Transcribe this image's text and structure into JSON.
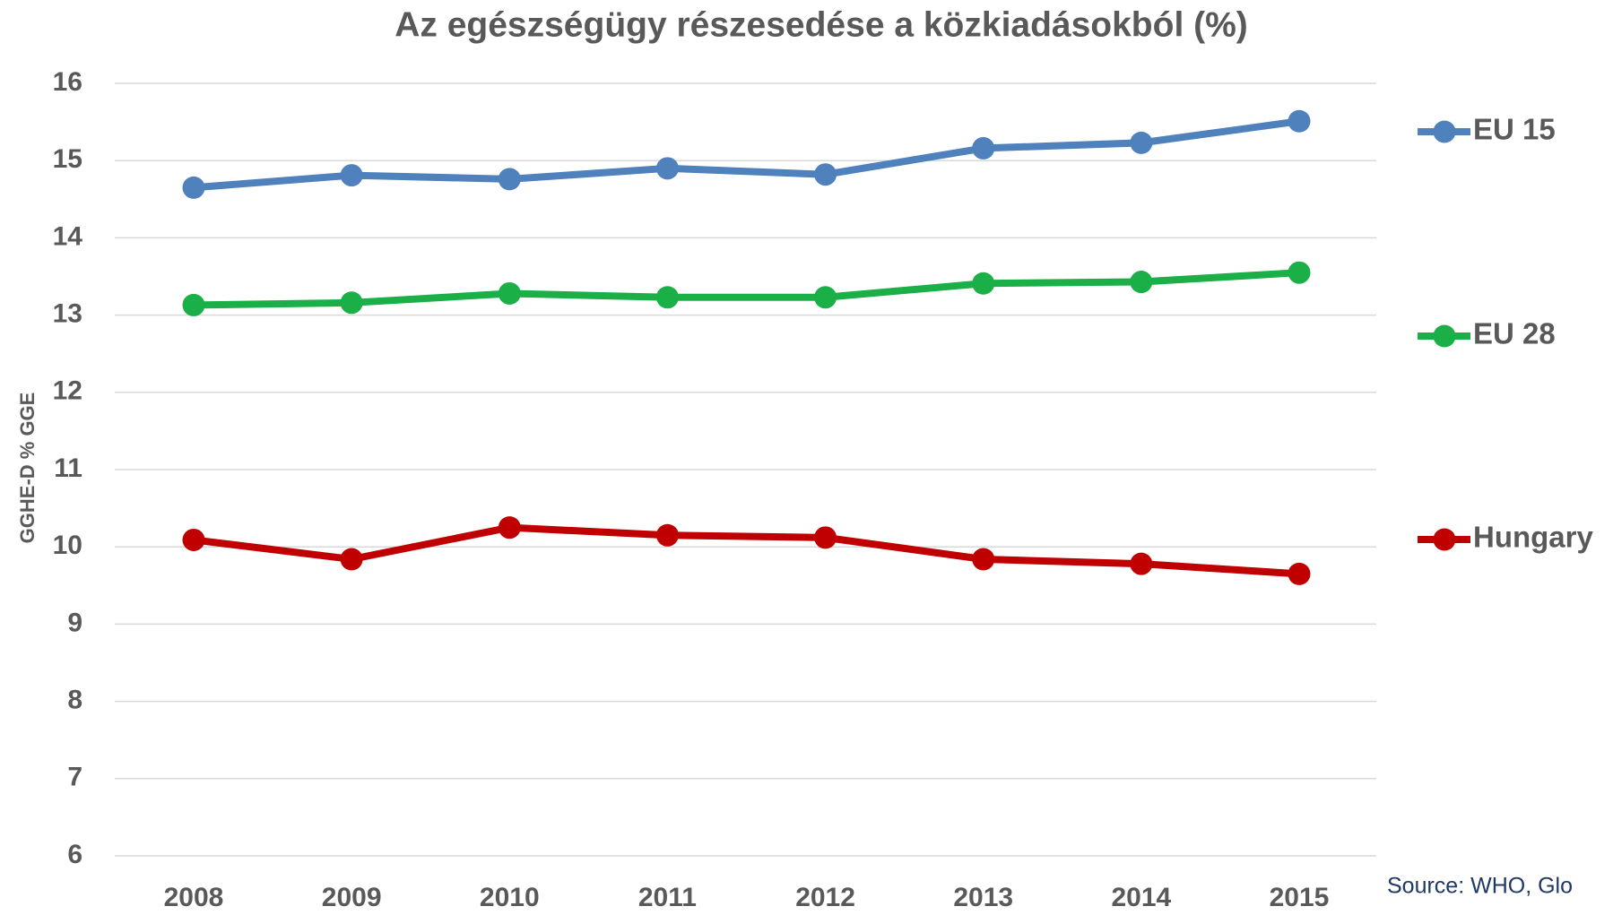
{
  "chart_data": {
    "type": "line",
    "title": "Az egészségügy részesedése a közkiadásokból (%)",
    "y_label": "GGHE-D % GGE",
    "source": "Source: WHO, Glo",
    "categories": [
      "2008",
      "2009",
      "2010",
      "2011",
      "2012",
      "2013",
      "2014",
      "2015"
    ],
    "series": [
      {
        "name": "EU 15",
        "color": "#4f81bd",
        "values": [
          14.65,
          14.81,
          14.76,
          14.9,
          14.82,
          15.16,
          15.23,
          15.51
        ]
      },
      {
        "name": "EU 28",
        "color": "#1aaf47",
        "values": [
          13.13,
          13.16,
          13.28,
          13.23,
          13.23,
          13.41,
          13.43,
          13.55
        ]
      },
      {
        "name": "Hungary",
        "color": "#c00000",
        "values": [
          10.09,
          9.84,
          10.25,
          10.15,
          10.12,
          9.84,
          9.78,
          9.65
        ]
      }
    ],
    "ylim": [
      6,
      16
    ],
    "yticks": [
      6,
      7,
      8,
      9,
      10,
      11,
      12,
      13,
      14,
      15,
      16
    ],
    "grid": true,
    "legend": "right"
  }
}
